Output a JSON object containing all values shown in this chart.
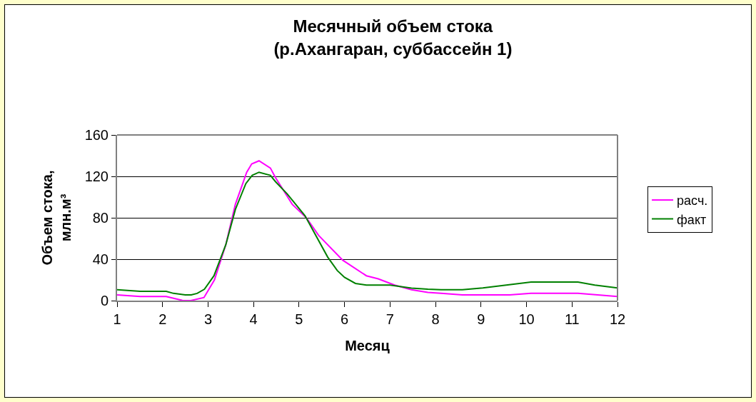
{
  "chart_data": {
    "type": "line",
    "title": "Месячный объем стока\n(р.Ахангаран, суббассейн 1)",
    "xlabel": "Месяц",
    "ylabel": "Объем стока, млн.м³",
    "xlim": [
      1,
      12
    ],
    "xticks": [
      1,
      2,
      3,
      4,
      5,
      6,
      7,
      8,
      9,
      10,
      11,
      12
    ],
    "ylim": [
      0,
      160
    ],
    "yticks": [
      0,
      40,
      80,
      120,
      160
    ],
    "grid": "y",
    "legend": "right",
    "marker": "none",
    "line_style": "solid",
    "series": [
      {
        "name": "расч.",
        "color": "#ff00ff",
        "x": [
          1,
          1.51,
          2.08,
          2.45,
          2.62,
          2.91,
          3.14,
          3.39,
          3.6,
          3.85,
          3.96,
          4.12,
          4.37,
          4.48,
          4.85,
          5.16,
          5.43,
          5.96,
          6.48,
          6.74,
          7.1,
          7.47,
          7.83,
          8.12,
          8.59,
          9.63,
          10.1,
          11.13,
          12
        ],
        "values": [
          5.5,
          4,
          4,
          0,
          0,
          3,
          20,
          54,
          93,
          124,
          132,
          135,
          128,
          119,
          93,
          80,
          63,
          39,
          24,
          21,
          15,
          10.5,
          8,
          7,
          5.5,
          5.5,
          7,
          7,
          4
        ]
      },
      {
        "name": "факт",
        "color": "#008000",
        "x": [
          1,
          1.51,
          2.08,
          2.24,
          2.5,
          2.63,
          2.76,
          2.92,
          3.13,
          3.39,
          3.6,
          3.83,
          3.97,
          4.12,
          4.37,
          4.48,
          4.74,
          5.13,
          5.63,
          5.84,
          6,
          6.24,
          6.48,
          7,
          7.47,
          7.83,
          8.12,
          8.59,
          9.04,
          10.1,
          11.13,
          11.5,
          12
        ],
        "values": [
          10.5,
          9,
          9,
          7,
          5.5,
          5.5,
          7,
          11,
          24,
          54,
          88,
          113,
          121,
          124,
          121,
          115,
          103,
          82,
          42,
          29,
          22.5,
          16.6,
          15,
          15,
          12,
          11,
          10.5,
          10.5,
          12.3,
          18,
          18,
          15,
          12.3
        ]
      }
    ]
  }
}
